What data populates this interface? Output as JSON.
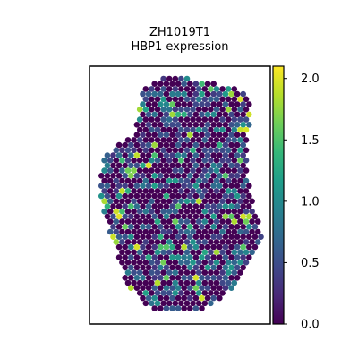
{
  "chart_data": {
    "type": "scatter",
    "title": "ZH1019T1",
    "subtitle": "HBP1 expression",
    "xlabel": "",
    "ylabel": "",
    "grid": false,
    "legend": "none",
    "colorbar": {
      "position": "right",
      "range": [
        0.0,
        2.1
      ],
      "ticks": [
        0.0,
        0.5,
        1.0,
        1.5,
        2.0
      ],
      "tick_labels": [
        "0.0",
        "0.5",
        "1.0",
        "1.5",
        "2.0"
      ],
      "colormap": "viridis"
    },
    "colors": {
      "viridis": [
        "#440154",
        "#482878",
        "#3e4989",
        "#31688e",
        "#26828e",
        "#1f9e89",
        "#35b779",
        "#6ece58",
        "#b5de2b",
        "#fde725"
      ]
    }
  }
}
